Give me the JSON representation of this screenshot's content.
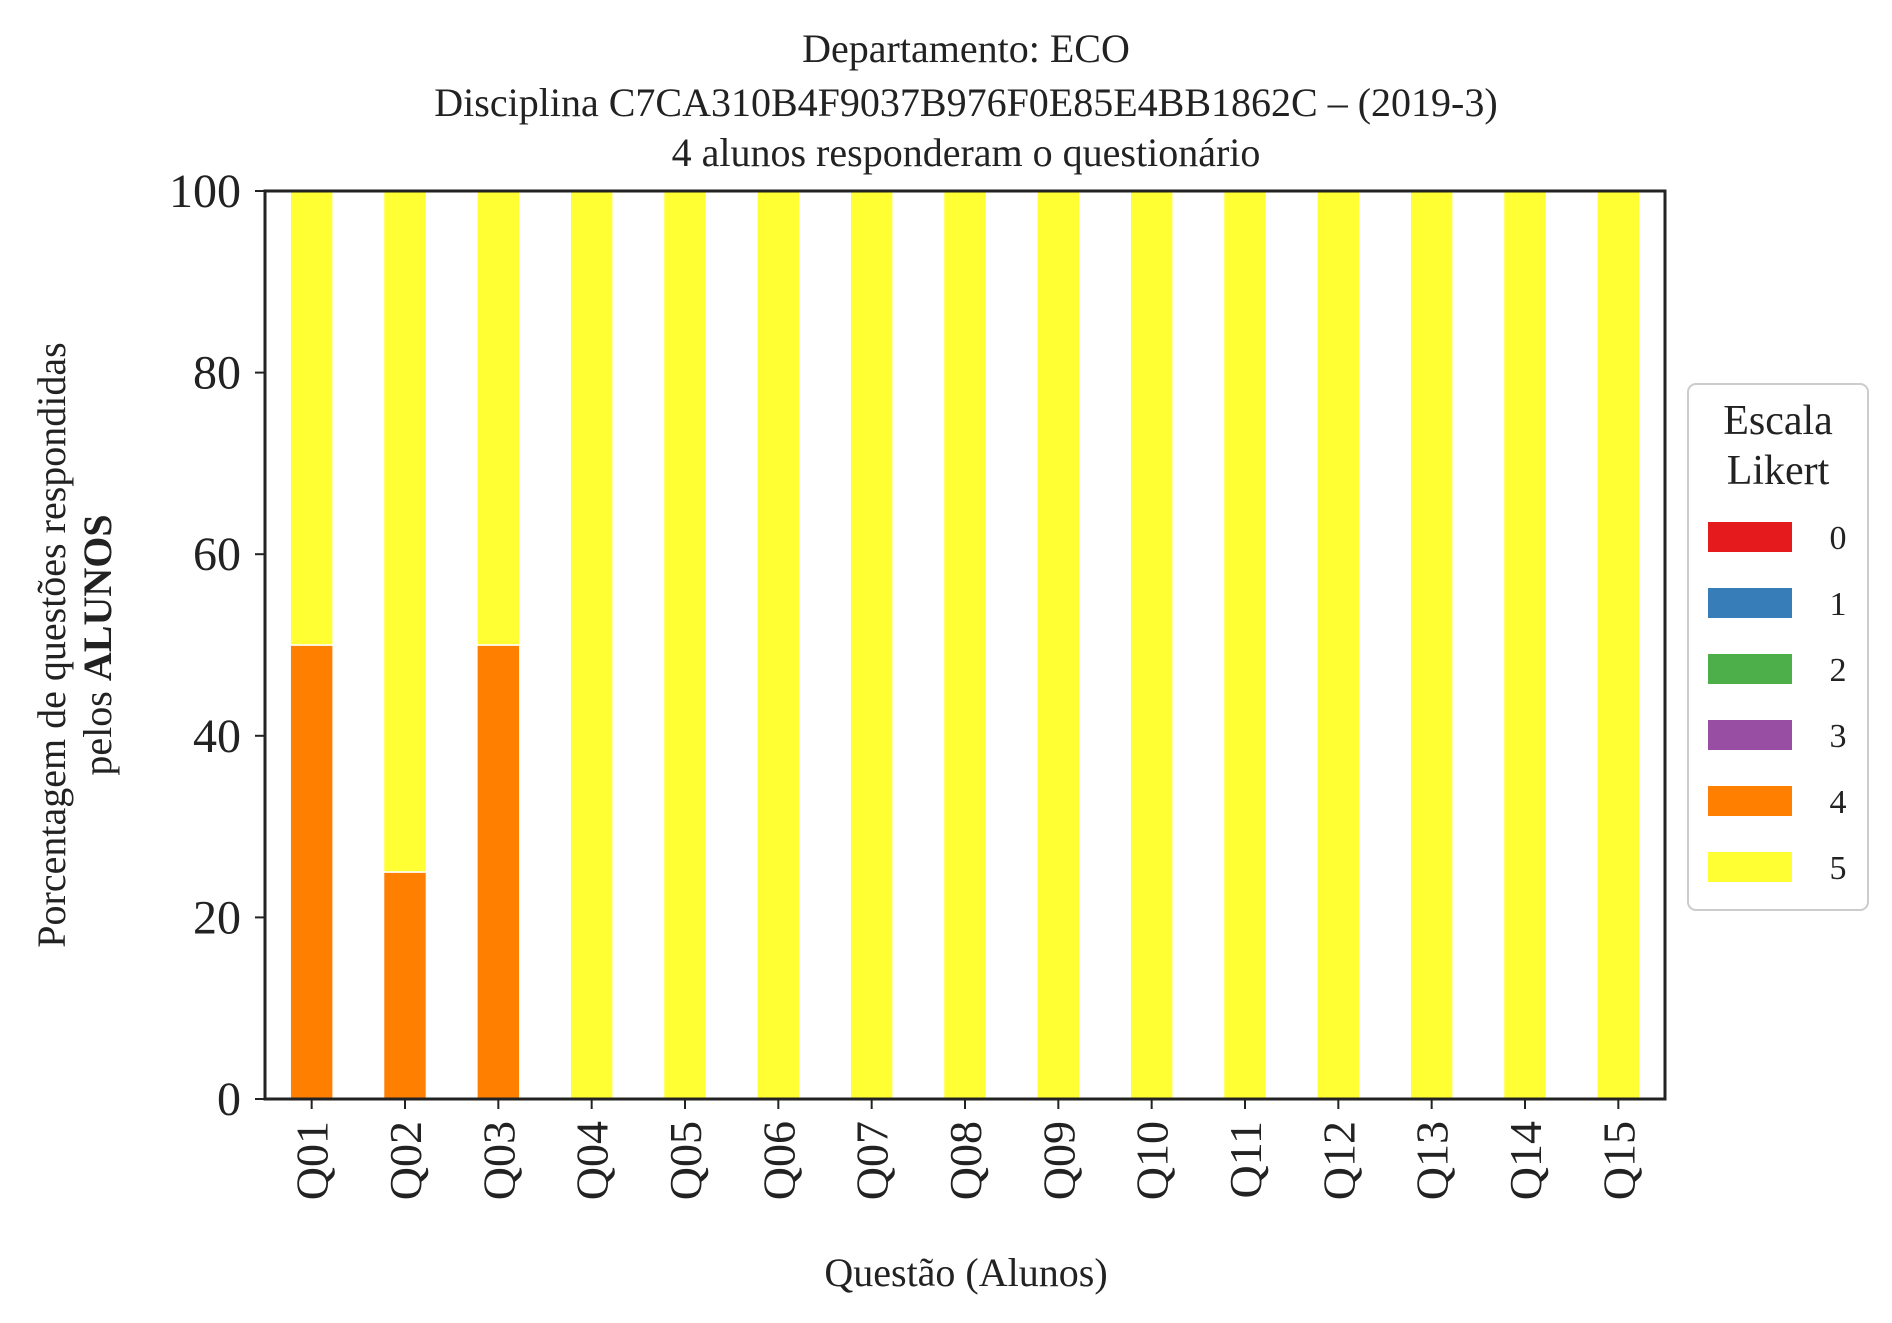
{
  "chart_data": {
    "type": "bar",
    "stacked": true,
    "title": [
      "Departamento: ECO",
      "Disciplina C7CA310B4F9037B976F0E85E4BB1862C – (2019-3)",
      "4 alunos responderam o questionário"
    ],
    "xlabel": "Questão (Alunos)",
    "ylabel": {
      "line1": "Porcentagem de questões respondidas",
      "line2_prefix": "pelos ",
      "line2_bold": "ALUNOS"
    },
    "ylim": [
      0,
      100
    ],
    "yticks": [
      0,
      20,
      40,
      60,
      80,
      100
    ],
    "categories": [
      "Q01",
      "Q02",
      "Q03",
      "Q04",
      "Q05",
      "Q06",
      "Q07",
      "Q08",
      "Q09",
      "Q10",
      "Q11",
      "Q12",
      "Q13",
      "Q14",
      "Q15"
    ],
    "series": [
      {
        "name": "0",
        "color": "#e41a1c",
        "values": [
          0,
          0,
          0,
          0,
          0,
          0,
          0,
          0,
          0,
          0,
          0,
          0,
          0,
          0,
          0
        ]
      },
      {
        "name": "1",
        "color": "#377eb8",
        "values": [
          0,
          0,
          0,
          0,
          0,
          0,
          0,
          0,
          0,
          0,
          0,
          0,
          0,
          0,
          0
        ]
      },
      {
        "name": "2",
        "color": "#4daf4a",
        "values": [
          0,
          0,
          0,
          0,
          0,
          0,
          0,
          0,
          0,
          0,
          0,
          0,
          0,
          0,
          0
        ]
      },
      {
        "name": "3",
        "color": "#984ea3",
        "values": [
          0,
          0,
          0,
          0,
          0,
          0,
          0,
          0,
          0,
          0,
          0,
          0,
          0,
          0,
          0
        ]
      },
      {
        "name": "4",
        "color": "#ff7f00",
        "values": [
          50,
          25,
          50,
          0,
          0,
          0,
          0,
          0,
          0,
          0,
          0,
          0,
          0,
          0,
          0
        ]
      },
      {
        "name": "5",
        "color": "#ffff33",
        "values": [
          50,
          75,
          50,
          100,
          100,
          100,
          100,
          100,
          100,
          100,
          100,
          100,
          100,
          100,
          100
        ]
      }
    ],
    "legend": {
      "title": [
        "Escala",
        "Likert"
      ],
      "placement": "center-right-outside"
    },
    "grid": false
  }
}
